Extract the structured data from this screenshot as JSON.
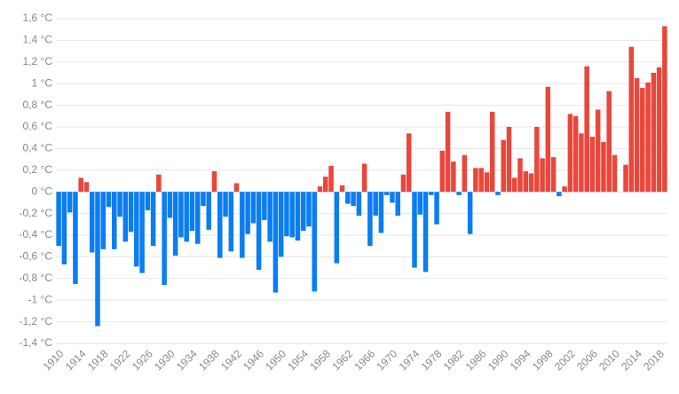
{
  "chart_data": {
    "type": "bar",
    "categories": [
      "1910",
      null,
      null,
      null,
      "1914",
      null,
      null,
      null,
      "1918",
      null,
      null,
      null,
      "1922",
      null,
      null,
      null,
      "1926",
      null,
      null,
      null,
      "1930",
      null,
      null,
      null,
      "1934",
      null,
      null,
      null,
      "1938",
      null,
      null,
      null,
      "1942",
      null,
      null,
      null,
      "1946",
      null,
      null,
      null,
      "1950",
      null,
      null,
      null,
      "1954",
      null,
      null,
      null,
      "1958",
      null,
      null,
      null,
      "1962",
      null,
      null,
      null,
      "1966",
      null,
      null,
      null,
      "1970",
      null,
      null,
      null,
      "1974",
      null,
      null,
      null,
      "1978",
      null,
      null,
      null,
      "1982",
      null,
      null,
      null,
      "1986",
      null,
      null,
      null,
      "1990",
      null,
      null,
      null,
      "1994",
      null,
      null,
      null,
      "1998",
      null,
      null,
      null,
      "2002",
      null,
      null,
      null,
      "2006",
      null,
      null,
      null,
      "2010",
      null,
      null,
      null,
      "2014",
      null,
      null,
      null,
      "2018",
      null
    ],
    "values": [
      -0.5,
      -0.67,
      -0.19,
      -0.85,
      0.13,
      0.09,
      -0.56,
      -1.24,
      -0.53,
      -0.14,
      -0.53,
      -0.23,
      -0.46,
      -0.37,
      -0.69,
      -0.75,
      -0.17,
      -0.5,
      0.16,
      -0.86,
      -0.24,
      -0.59,
      -0.42,
      -0.46,
      -0.36,
      -0.48,
      -0.13,
      -0.35,
      0.19,
      -0.61,
      -0.23,
      -0.55,
      0.08,
      -0.61,
      -0.39,
      -0.29,
      -0.72,
      -0.26,
      -0.46,
      -0.93,
      -0.6,
      -0.41,
      -0.42,
      -0.45,
      -0.36,
      -0.32,
      -0.92,
      0.05,
      0.14,
      0.24,
      -0.66,
      0.06,
      -0.11,
      -0.13,
      -0.22,
      0.26,
      -0.5,
      -0.22,
      -0.38,
      -0.03,
      -0.1,
      -0.22,
      0.16,
      0.54,
      -0.7,
      -0.21,
      -0.74,
      -0.03,
      -0.3,
      0.38,
      0.74,
      0.28,
      -0.03,
      0.34,
      -0.39,
      0.22,
      0.22,
      0.18,
      0.74,
      -0.03,
      0.48,
      0.6,
      0.13,
      0.31,
      0.19,
      0.17,
      0.6,
      0.31,
      0.97,
      0.32,
      -0.04,
      0.05,
      0.72,
      0.7,
      0.54,
      1.16,
      0.51,
      0.76,
      0.46,
      0.93,
      0.34,
      0,
      0.25,
      1.34,
      1.05,
      0.96,
      1.01,
      1.1,
      1.15,
      1.53
    ],
    "color_positive": "#e8473c",
    "color_negative": "#0a7df2",
    "ylim": [
      -1.4,
      1.6
    ],
    "yticks": [
      {
        "value": -1.4,
        "label": "-1,4 °C"
      },
      {
        "value": -1.2,
        "label": "-1,2 °C"
      },
      {
        "value": -1,
        "label": "-1 °C"
      },
      {
        "value": -0.8,
        "label": "-0,8 °C"
      },
      {
        "value": -0.6,
        "label": "-0,6 °C"
      },
      {
        "value": -0.4,
        "label": "-0,4 °C"
      },
      {
        "value": -0.2,
        "label": "-0,2 °C"
      },
      {
        "value": 0,
        "label": "0 °C"
      },
      {
        "value": 0.2,
        "label": "0,2 °C"
      },
      {
        "value": 0.4,
        "label": "0,4 °C"
      },
      {
        "value": 0.6,
        "label": "0,6 °C"
      },
      {
        "value": 0.8,
        "label": "0,8 °C"
      },
      {
        "value": 1,
        "label": "1 °C"
      },
      {
        "value": 1.2,
        "label": "1,2 °C"
      },
      {
        "value": 1.4,
        "label": "1,4 °C"
      },
      {
        "value": 1.6,
        "label": "1,6 °C"
      }
    ],
    "grid": true
  }
}
